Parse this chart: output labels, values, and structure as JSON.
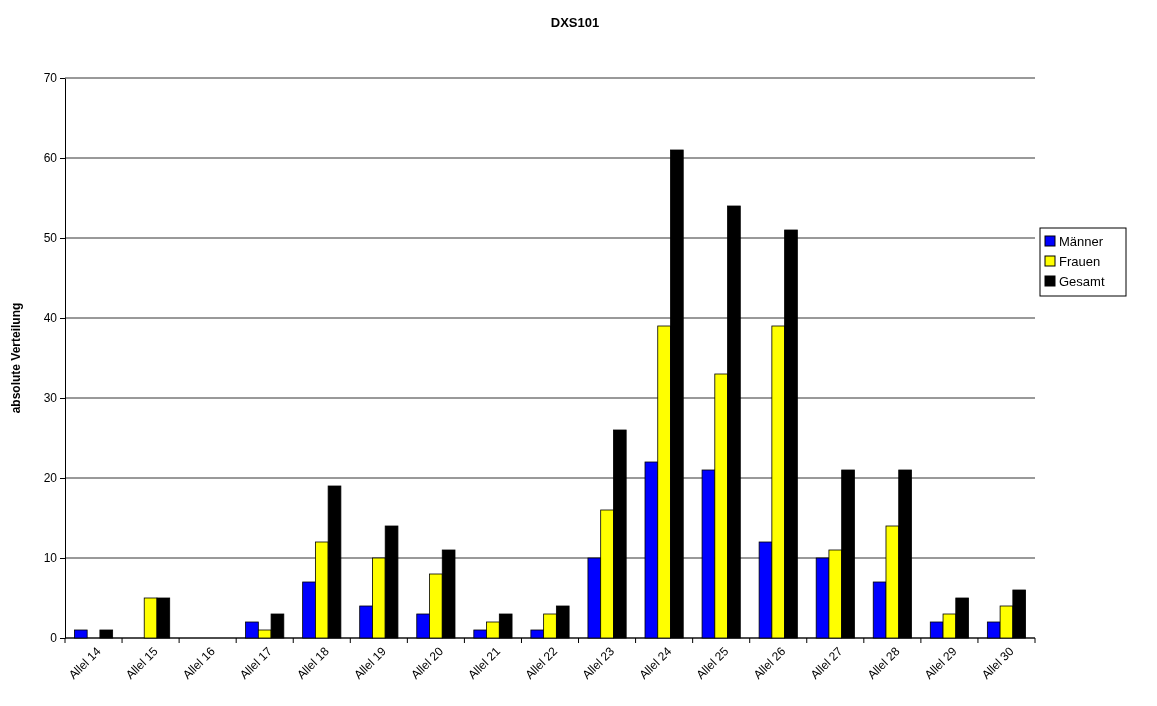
{
  "chart_data": {
    "type": "bar",
    "title": "DXS101",
    "ylabel": "absolute Verteilung",
    "categories": [
      "Allel 14",
      "Allel 15",
      "Allel 16",
      "Allel 17",
      "Allel 18",
      "Allel 19",
      "Allel 20",
      "Allel 21",
      "Allel 22",
      "Allel 23",
      "Allel 24",
      "Allel 25",
      "Allel 26",
      "Allel 27",
      "Allel 28",
      "Allel 29",
      "Allel 30"
    ],
    "series": [
      {
        "name": "Männer",
        "color": "#0000ff",
        "values": [
          1,
          0,
          0,
          2,
          7,
          4,
          3,
          1,
          1,
          10,
          22,
          21,
          12,
          10,
          7,
          2,
          2
        ]
      },
      {
        "name": "Frauen",
        "color": "#ffff00",
        "values": [
          0,
          5,
          0,
          1,
          12,
          10,
          8,
          2,
          3,
          16,
          39,
          33,
          39,
          11,
          14,
          3,
          4
        ]
      },
      {
        "name": "Gesamt",
        "color": "#000000",
        "values": [
          1,
          5,
          0,
          3,
          19,
          14,
          11,
          3,
          4,
          26,
          61,
          54,
          51,
          21,
          21,
          5,
          6
        ]
      }
    ],
    "ylim": [
      0,
      70
    ],
    "yticks": [
      0,
      10,
      20,
      30,
      40,
      50,
      60,
      70
    ],
    "grid": "y",
    "legend": "right"
  }
}
